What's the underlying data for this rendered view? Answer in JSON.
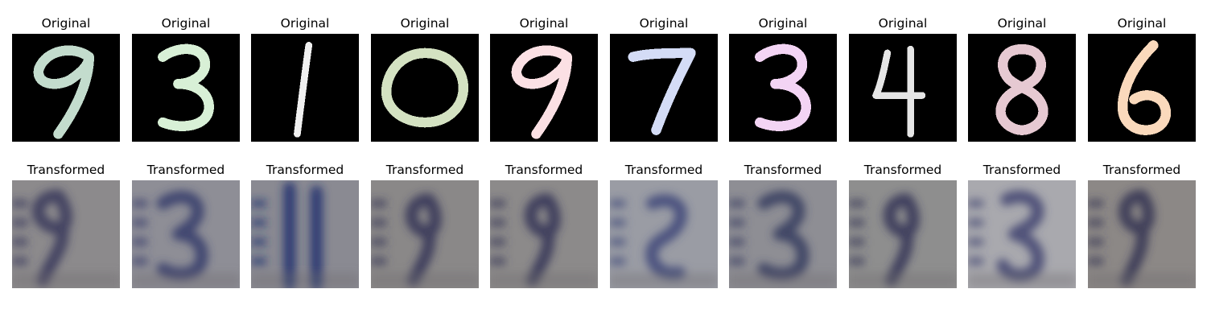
{
  "figure": {
    "top_row_title": "Original",
    "bottom_row_title": "Transformed",
    "originals": [
      {
        "digit": "9",
        "stroke_color": "#c3dccd"
      },
      {
        "digit": "3",
        "stroke_color": "#d8f0d6"
      },
      {
        "digit": "1",
        "stroke_color": "#f0f0f0"
      },
      {
        "digit": "0",
        "stroke_color": "#d4e2c2"
      },
      {
        "digit": "9",
        "stroke_color": "#fbe0e4"
      },
      {
        "digit": "7",
        "stroke_color": "#d4dcf6"
      },
      {
        "digit": "3",
        "stroke_color": "#f3d4f4"
      },
      {
        "digit": "4",
        "stroke_color": "#e6e6e6"
      },
      {
        "digit": "8",
        "stroke_color": "#e6c9d2"
      },
      {
        "digit": "6",
        "stroke_color": "#fad9bc"
      }
    ],
    "transformed": [
      {
        "background_color": "#8c8a8c",
        "stroke_color": "#35355a"
      },
      {
        "background_color": "#8e8e96",
        "stroke_color": "#34386a"
      },
      {
        "background_color": "#8a8a92",
        "stroke_color": "#1e2e6e"
      },
      {
        "background_color": "#8a8888",
        "stroke_color": "#333356"
      },
      {
        "background_color": "#8c8a8a",
        "stroke_color": "#333355"
      },
      {
        "background_color": "#9a9ca4",
        "stroke_color": "#3c4678"
      },
      {
        "background_color": "#8e8e94",
        "stroke_color": "#34385e"
      },
      {
        "background_color": "#8e8e8e",
        "stroke_color": "#333355"
      },
      {
        "background_color": "#a9a9ae",
        "stroke_color": "#3e4270"
      },
      {
        "background_color": "#8c8886",
        "stroke_color": "#333352"
      }
    ]
  }
}
